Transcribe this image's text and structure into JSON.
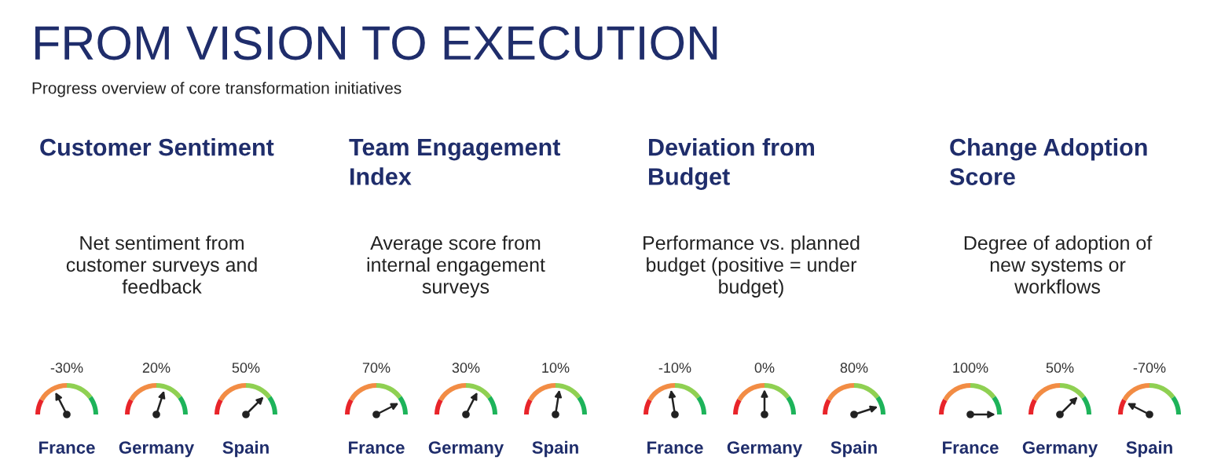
{
  "chart_data": [
    {
      "type": "other",
      "title": "FROM VISION TO EXECUTION",
      "subtitle": "Progress overview of core transformation initiatives"
    },
    {
      "type": "other",
      "title": "Customer Sentiment",
      "subtitle": "Net sentiment from\ncustomer surveys and\nfeedback",
      "categories": [
        "France",
        "Germany",
        "Spain"
      ],
      "values": [
        -30,
        20,
        50
      ],
      "value_labels": [
        "-30%",
        "20%",
        "50%"
      ]
    },
    {
      "type": "other",
      "title": "Team Engagement\nIndex",
      "subtitle": "Average score from\ninternal engagement\nsurveys",
      "categories": [
        "France",
        "Germany",
        "Spain"
      ],
      "values": [
        70,
        30,
        10
      ],
      "value_labels": [
        "70%",
        "30%",
        "10%"
      ]
    },
    {
      "type": "other",
      "title": "Deviation from\nBudget",
      "subtitle": "Performance vs. planned\nbudget (positive = under\nbudget)",
      "categories": [
        "France",
        "Germany",
        "Spain"
      ],
      "values": [
        -10,
        0,
        80
      ],
      "value_labels": [
        "-10%",
        "0%",
        "80%"
      ]
    },
    {
      "type": "other",
      "title": "Change Adoption\nScore",
      "subtitle": "Degree of adoption of\nnew systems or\nworkflows",
      "categories": [
        "France",
        "Germany",
        "Spain"
      ],
      "values": [
        100,
        50,
        -70
      ],
      "value_labels": [
        "100%",
        "50%",
        "-70%"
      ]
    }
  ]
}
